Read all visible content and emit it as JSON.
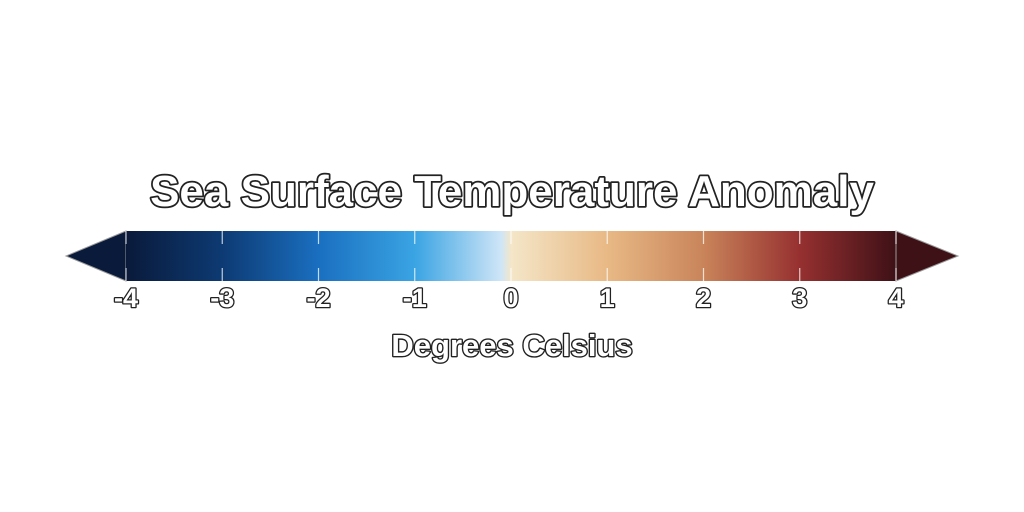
{
  "title": "Sea Surface Temperature Anomaly",
  "unit_label": "Degrees Celsius",
  "colorbar": {
    "min": -4,
    "max": 4,
    "extend": "both",
    "ticks": [
      -4,
      -3,
      -2,
      -1,
      0,
      1,
      2,
      3,
      4
    ],
    "tick_labels": [
      "-4",
      "-3",
      "-2",
      "-1",
      "0",
      "1",
      "2",
      "3",
      "4"
    ],
    "color_stops": [
      {
        "value": -4,
        "color": "#0a1a3a"
      },
      {
        "value": -3,
        "color": "#0d3a73"
      },
      {
        "value": -2,
        "color": "#1a6fc0"
      },
      {
        "value": -1,
        "color": "#3aa4e3"
      },
      {
        "value": -0.1,
        "color": "#cfe5f7"
      },
      {
        "value": 0,
        "color": "#f4e6c8"
      },
      {
        "value": 1,
        "color": "#e8b985"
      },
      {
        "value": 2,
        "color": "#c9845a"
      },
      {
        "value": 3,
        "color": "#963030"
      },
      {
        "value": 4,
        "color": "#3e1117"
      }
    ],
    "under_color": "#0a1a3a",
    "over_color": "#3e1117"
  }
}
